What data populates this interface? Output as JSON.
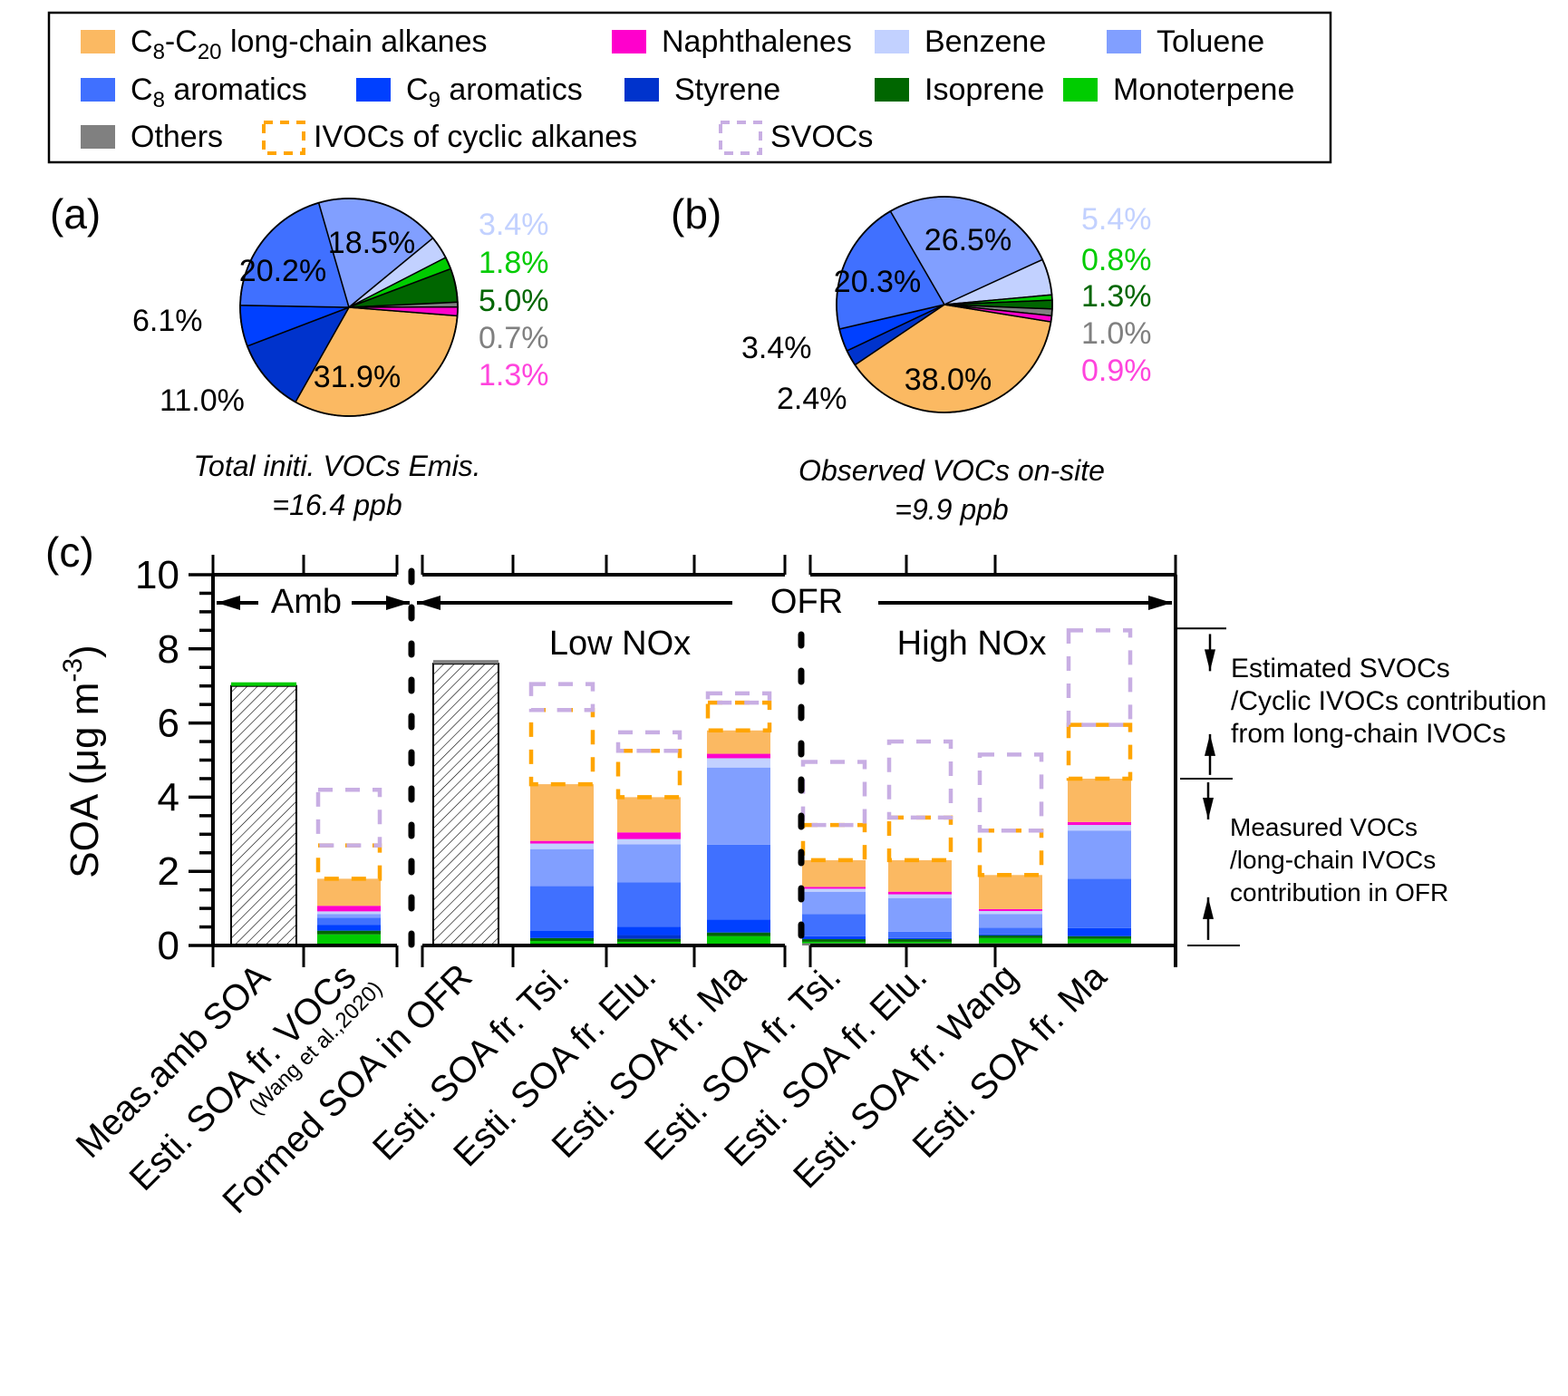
{
  "legend": {
    "items": [
      {
        "key": "alkanes",
        "label_main": "C",
        "sub1": "8",
        "mid": "-C",
        "sub2": "20",
        "rest": " long-chain alkanes",
        "color": "#FBB962",
        "style": "solid"
      },
      {
        "key": "naphthalenes",
        "label": "Naphthalenes",
        "color": "#FF00CC",
        "style": "solid"
      },
      {
        "key": "benzene",
        "label": "Benzene",
        "color": "#C2D1FF",
        "style": "solid"
      },
      {
        "key": "toluene",
        "label": "Toluene",
        "color": "#819FFF",
        "style": "solid"
      },
      {
        "key": "c8",
        "label_main": "C",
        "sub1": "8",
        "rest": " aromatics",
        "color": "#4070FF",
        "style": "solid"
      },
      {
        "key": "c9",
        "label_main": "C",
        "sub1": "9",
        "rest": " aromatics",
        "color": "#0040FF",
        "style": "solid"
      },
      {
        "key": "styrene",
        "label": "Styrene",
        "color": "#0033CC",
        "style": "solid"
      },
      {
        "key": "isoprene",
        "label": "Isoprene",
        "color": "#006600",
        "style": "solid"
      },
      {
        "key": "monoterpene",
        "label": "Monoterpene",
        "color": "#00CC00",
        "style": "solid"
      },
      {
        "key": "others",
        "label": "Others",
        "color": "#808080",
        "style": "solid"
      },
      {
        "key": "ivoc_cyclic",
        "label": "IVOCs of cyclic alkanes",
        "color": "#FFA500",
        "style": "dashed"
      },
      {
        "key": "svoc",
        "label": "SVOCs",
        "color": "#C8AEE3",
        "style": "dashed"
      }
    ]
  },
  "chart_data": [
    {
      "type": "pie",
      "panel": "(a)",
      "caption_line1": "Total initi. VOCs Emis.",
      "caption_line2": "=16.4 ppb",
      "slices": [
        {
          "key": "alkanes",
          "value": 31.9,
          "label": "31.9%",
          "label_color": "#000000"
        },
        {
          "key": "styrene",
          "value": 11.0,
          "label": "11.0%",
          "label_color": "#000000"
        },
        {
          "key": "c9",
          "value": 6.1,
          "label": "6.1%",
          "label_color": "#000000"
        },
        {
          "key": "c8",
          "value": 20.2,
          "label": "20.2%",
          "label_color": "#000000"
        },
        {
          "key": "toluene",
          "value": 18.5,
          "label": "18.5%",
          "label_color": "#000000"
        },
        {
          "key": "benzene",
          "value": 3.4,
          "label": "3.4%",
          "label_color": "#C2D1FF"
        },
        {
          "key": "monoterpene",
          "value": 1.8,
          "label": "1.8%",
          "label_color": "#00CC00"
        },
        {
          "key": "isoprene",
          "value": 5.0,
          "label": "5.0%",
          "label_color": "#006600"
        },
        {
          "key": "others",
          "value": 0.7,
          "label": "0.7%",
          "label_color": "#808080"
        },
        {
          "key": "naphthalenes",
          "value": 1.3,
          "label": "1.3%",
          "label_color": "#FF44DD"
        }
      ]
    },
    {
      "type": "pie",
      "panel": "(b)",
      "caption_line1": "Observed VOCs on-site",
      "caption_line2": "=9.9 ppb",
      "slices": [
        {
          "key": "alkanes",
          "value": 38.0,
          "label": "38.0%",
          "label_color": "#000000"
        },
        {
          "key": "styrene",
          "value": 2.4,
          "label": "2.4%",
          "label_color": "#000000"
        },
        {
          "key": "c9",
          "value": 3.4,
          "label": "3.4%",
          "label_color": "#000000"
        },
        {
          "key": "c8",
          "value": 20.3,
          "label": "20.3%",
          "label_color": "#000000"
        },
        {
          "key": "toluene",
          "value": 26.5,
          "label": "26.5%",
          "label_color": "#000000"
        },
        {
          "key": "benzene",
          "value": 5.4,
          "label": "5.4%",
          "label_color": "#C2D1FF"
        },
        {
          "key": "monoterpene",
          "value": 0.8,
          "label": "0.8%",
          "label_color": "#00CC00"
        },
        {
          "key": "isoprene",
          "value": 1.3,
          "label": "1.3%",
          "label_color": "#006600"
        },
        {
          "key": "others",
          "value": 1.0,
          "label": "1.0%",
          "label_color": "#808080"
        },
        {
          "key": "naphthalenes",
          "value": 0.9,
          "label": "0.9%",
          "label_color": "#FF44DD"
        }
      ]
    },
    {
      "type": "bar",
      "stacked": true,
      "panel": "(c)",
      "ylabel": "SOA (μg m",
      "ylabel_sup": "-3",
      "ylabel_close": ")",
      "ylim": [
        0,
        10
      ],
      "yticks": [
        0,
        2,
        4,
        6,
        8,
        10
      ],
      "group_labels": {
        "amb": "Amb",
        "ofr": "OFR",
        "low": "Low NOx",
        "high": "High NOx"
      },
      "annotations": {
        "upper": [
          "Estimated SVOCs",
          "/Cyclic IVOCs contribution",
          "from long-chain IVOCs"
        ],
        "lower": [
          "Measured VOCs",
          "/long-chain IVOCs",
          "contribution in OFR"
        ]
      },
      "categories": [
        {
          "label": "Meas.amb SOA",
          "sublabel": "",
          "hatched_total": 7.0,
          "top_key": "monoterpene"
        },
        {
          "label": "Esti. SOA fr. VOCs",
          "sublabel": "(Wang et al.,2020)",
          "segments": {
            "others": 0,
            "monoterpene": 0.3,
            "isoprene": 0.1,
            "styrene": 0,
            "c9": 0.15,
            "c8": 0.2,
            "toluene": 0.1,
            "benzene": 0.07,
            "naphthalenes": 0.15,
            "alkanes": 0.73,
            "ivoc_cyclic": 0.9,
            "svoc": 1.5
          }
        },
        {
          "label": "Formed SOA in OFR",
          "sublabel": "",
          "hatched_total": 7.6,
          "top_key": "others"
        },
        {
          "label": "Esti. SOA fr. Tsi.",
          "sublabel": "",
          "segments": {
            "others": 0,
            "monoterpene": 0.12,
            "isoprene": 0.08,
            "styrene": 0,
            "c9": 0.2,
            "c8": 1.2,
            "toluene": 1.0,
            "benzene": 0.15,
            "naphthalenes": 0.07,
            "alkanes": 1.53,
            "ivoc_cyclic": 2.0,
            "svoc": 0.7
          }
        },
        {
          "label": "Esti. SOA fr. Elu.",
          "sublabel": "",
          "segments": {
            "others": 0,
            "monoterpene": 0.1,
            "isoprene": 0.08,
            "styrene": 0.1,
            "c9": 0.22,
            "c8": 1.2,
            "toluene": 1.03,
            "benzene": 0.14,
            "naphthalenes": 0.18,
            "alkanes": 0.95,
            "ivoc_cyclic": 1.25,
            "svoc": 0.5
          }
        },
        {
          "label": "Esti. SOA fr. Ma",
          "sublabel": "",
          "segments": {
            "others": 0,
            "monoterpene": 0.25,
            "isoprene": 0.1,
            "styrene": 0,
            "c9": 0.35,
            "c8": 2.02,
            "toluene": 2.08,
            "benzene": 0.25,
            "naphthalenes": 0.12,
            "alkanes": 0.63,
            "ivoc_cyclic": 0.75,
            "svoc": 0.25
          }
        },
        {
          "label": "Esti. SOA fr. Tsi.",
          "sublabel": "",
          "segments": {
            "others": 0.06,
            "monoterpene": 0.04,
            "isoprene": 0.07,
            "styrene": 0,
            "c9": 0.08,
            "c8": 0.6,
            "toluene": 0.6,
            "benzene": 0.08,
            "naphthalenes": 0.05,
            "alkanes": 0.72,
            "ivoc_cyclic": 0.95,
            "svoc": 1.7
          }
        },
        {
          "label": "Esti. SOA fr. Elu.",
          "sublabel": "",
          "segments": {
            "others": 0.06,
            "monoterpene": 0.04,
            "isoprene": 0.07,
            "styrene": 0,
            "c9": 0.03,
            "c8": 0.17,
            "toluene": 0.91,
            "benzene": 0.1,
            "naphthalenes": 0.07,
            "alkanes": 0.85,
            "ivoc_cyclic": 1.15,
            "svoc": 2.05
          }
        },
        {
          "label": "Esti. SOA fr. Wang",
          "sublabel": "",
          "segments": {
            "others": 0.06,
            "monoterpene": 0.14,
            "isoprene": 0.07,
            "styrene": 0,
            "c9": 0.03,
            "c8": 0.18,
            "toluene": 0.37,
            "benzene": 0.08,
            "naphthalenes": 0.05,
            "alkanes": 0.92,
            "ivoc_cyclic": 1.2,
            "svoc": 2.05
          }
        },
        {
          "label": "Esti. SOA fr. Ma",
          "sublabel": "",
          "segments": {
            "others": 0.06,
            "monoterpene": 0.12,
            "isoprene": 0.07,
            "styrene": 0,
            "c9": 0.22,
            "c8": 1.33,
            "toluene": 1.3,
            "benzene": 0.15,
            "naphthalenes": 0.08,
            "alkanes": 1.17,
            "ivoc_cyclic": 1.45,
            "svoc": 2.55
          }
        }
      ]
    }
  ]
}
